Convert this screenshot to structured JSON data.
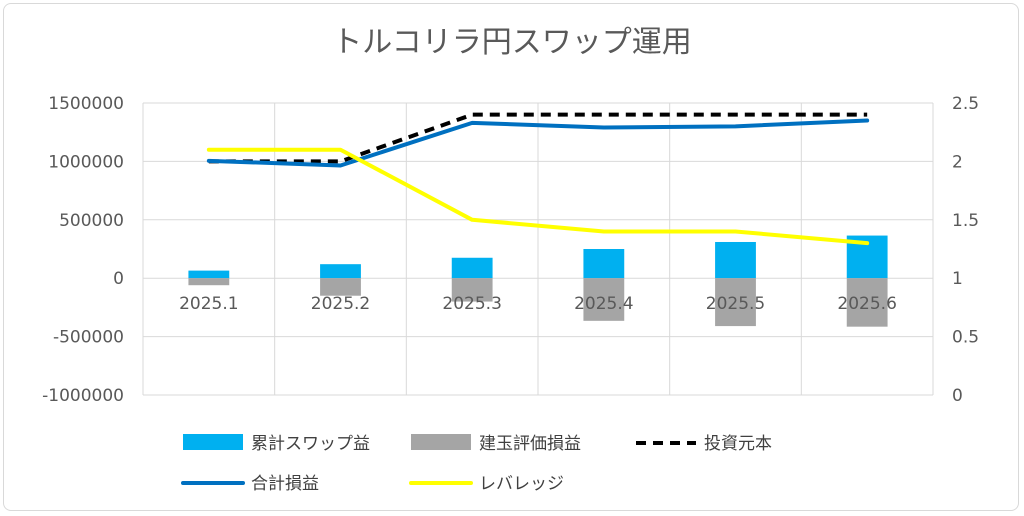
{
  "chart_data": {
    "type": "bar",
    "title": "トルコリラ円スワップ運用",
    "xlabel": "",
    "ylabel": "",
    "categories": [
      "2025.1",
      "2025.2",
      "2025.3",
      "2025.4",
      "2025.5",
      "2025.6"
    ],
    "ylim": [
      -1000000,
      1500000
    ],
    "y2lim": [
      0,
      2.5
    ],
    "y_ticks": [
      "1500000",
      "1000000",
      "500000",
      "0",
      "-500000",
      "-1000000"
    ],
    "y2_ticks": [
      "2.5",
      "2",
      "1.5",
      "1",
      "0.5",
      "0"
    ],
    "grid": true,
    "legend_position": "bottom",
    "series": [
      {
        "name": "累計スワップ益",
        "kind": "bar",
        "axis": "left",
        "color": "#00b0f0",
        "values": [
          65000,
          120000,
          175000,
          250000,
          310000,
          365000
        ]
      },
      {
        "name": "建玉評価損益",
        "kind": "bar",
        "axis": "left",
        "color": "#a5a5a5",
        "values": [
          -60000,
          -150000,
          -200000,
          -365000,
          -410000,
          -415000
        ]
      },
      {
        "name": "投資元本",
        "kind": "line",
        "style": "dashed",
        "axis": "left",
        "color": "#000000",
        "values": [
          1000000,
          1000000,
          1400000,
          1400000,
          1400000,
          1400000
        ]
      },
      {
        "name": "合計損益",
        "kind": "line",
        "axis": "left",
        "color": "#0070c0",
        "values": [
          1005000,
          965000,
          1330000,
          1290000,
          1300000,
          1350000
        ]
      },
      {
        "name": "レバレッジ",
        "kind": "line",
        "axis": "right",
        "color": "#ffff00",
        "values": [
          2.1,
          2.1,
          1.5,
          1.4,
          1.4,
          1.3
        ]
      }
    ]
  }
}
